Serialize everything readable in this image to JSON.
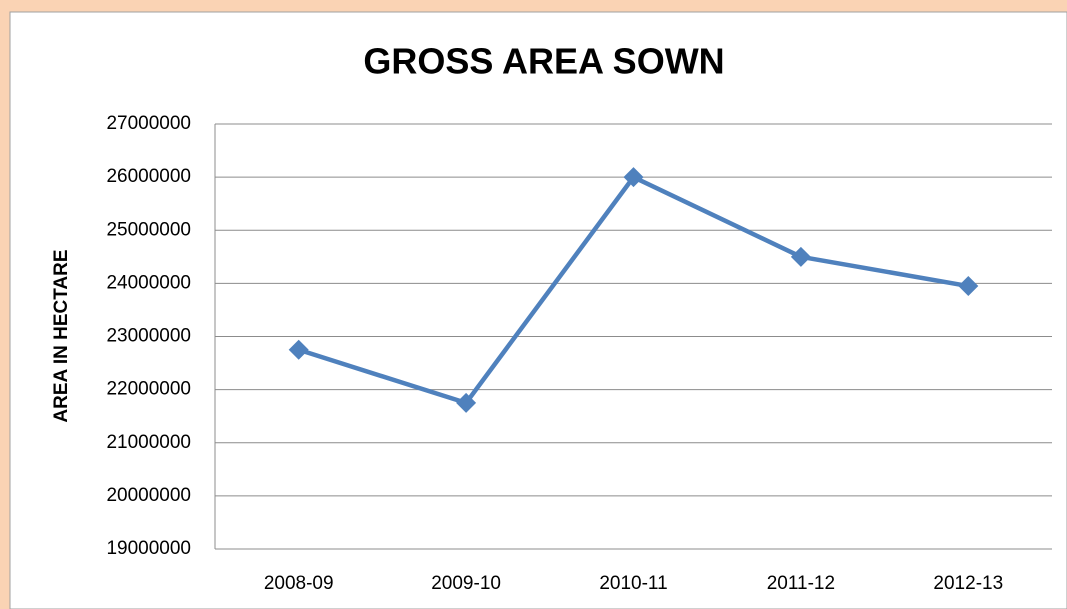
{
  "chart_data": {
    "type": "line",
    "title": "GROSS AREA SOWN",
    "y_label": "AREA IN HECTARE",
    "categories": [
      "2008-09",
      "2009-10",
      "2010-11",
      "2011-12",
      "2012-13"
    ],
    "series": [
      {
        "name": "Gross Area Sown",
        "color": "#4f81bd",
        "values": [
          22750000,
          21750000,
          26000000,
          24500000,
          23950000
        ]
      }
    ],
    "ylim": [
      19000000,
      27000000
    ],
    "yticks": [
      19000000,
      20000000,
      21000000,
      22000000,
      23000000,
      24000000,
      25000000,
      26000000,
      27000000
    ],
    "grid": true
  }
}
